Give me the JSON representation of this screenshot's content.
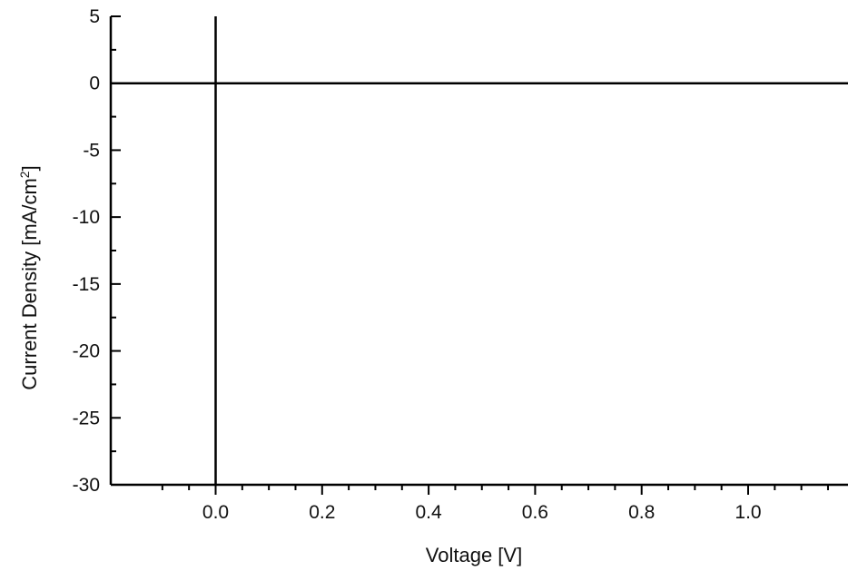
{
  "chart_data": {
    "type": "line",
    "title": "",
    "xlabel": "Voltage [V]",
    "ylabel": "Current Density [mA/cm²]",
    "xlim": [
      -0.2,
      1.2
    ],
    "ylim": [
      -30,
      5
    ],
    "x_ticks": [
      0.0,
      0.2,
      0.4,
      0.6,
      0.8,
      1.0
    ],
    "x_tick_labels": [
      "0.0",
      "0.2",
      "0.4",
      "0.6",
      "0.8",
      "1.0"
    ],
    "y_ticks": [
      5,
      0,
      -5,
      -10,
      -15,
      -20,
      -25,
      -30
    ],
    "y_tick_labels": [
      "5",
      "0",
      "-5",
      "-10",
      "-15",
      "-20",
      "-25",
      "-30"
    ],
    "reference_lines": [
      {
        "orientation": "horizontal",
        "value": 0
      },
      {
        "orientation": "vertical",
        "value": 0
      }
    ],
    "series": [],
    "grid": false,
    "legend": "none"
  }
}
